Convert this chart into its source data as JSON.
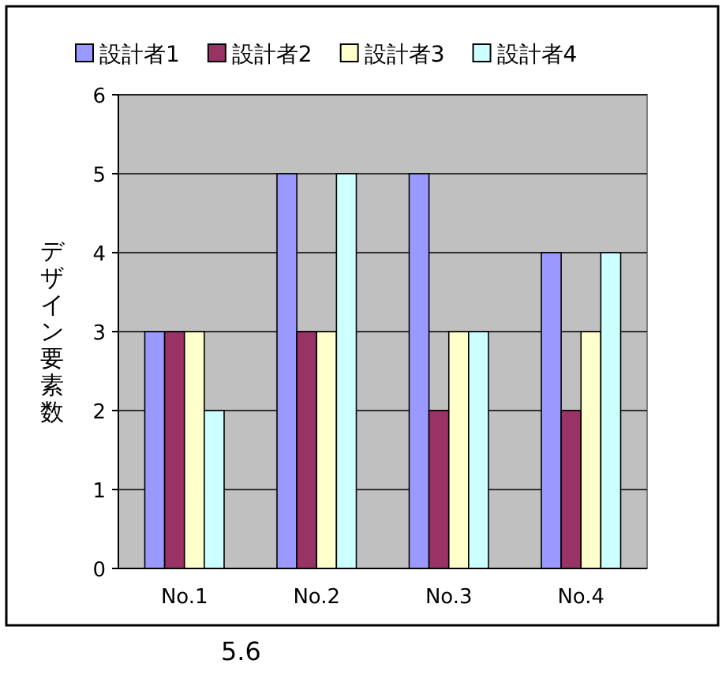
{
  "chart_data": {
    "type": "bar",
    "ylabel": "デザイン要素数",
    "categories": [
      "No.1",
      "No.2",
      "No.3",
      "No.4"
    ],
    "series": [
      {
        "name": "設計者1",
        "color": "#9999ff",
        "values": [
          3,
          5,
          5,
          4
        ]
      },
      {
        "name": "設計者2",
        "color": "#993366",
        "values": [
          3,
          3,
          2,
          2
        ]
      },
      {
        "name": "設計者3",
        "color": "#ffffcc",
        "values": [
          3,
          3,
          3,
          3
        ]
      },
      {
        "name": "設計者4",
        "color": "#ccffff",
        "values": [
          2,
          5,
          3,
          4
        ]
      }
    ],
    "ylim": [
      0,
      6
    ],
    "yticks": [
      0,
      1,
      2,
      3,
      4,
      5,
      6
    ],
    "grid": "y",
    "legend": "top",
    "annotations": [
      "5.6"
    ]
  }
}
